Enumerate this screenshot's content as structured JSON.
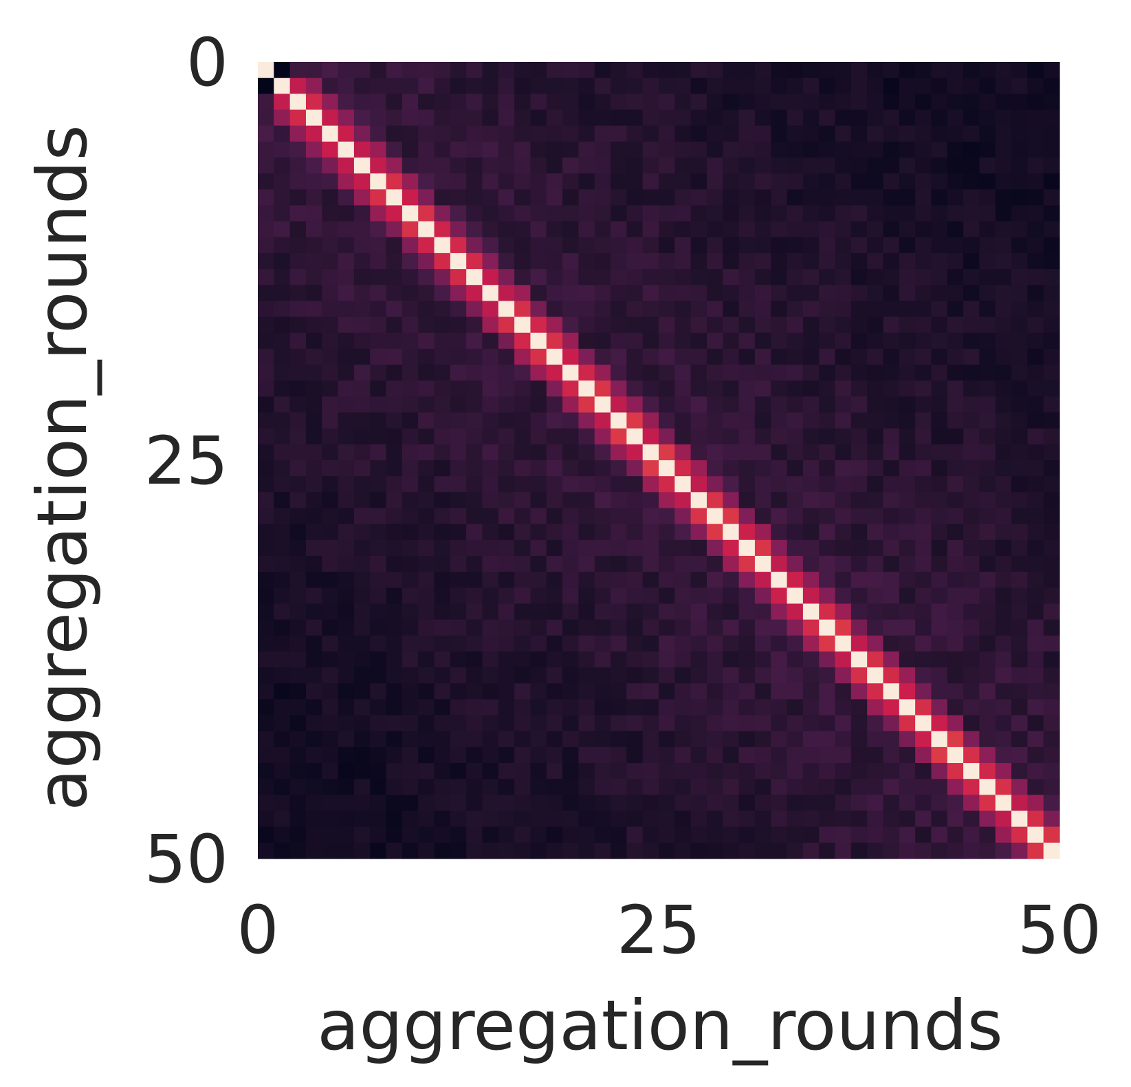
{
  "chart_data": {
    "type": "heatmap",
    "title": "",
    "xlabel": "aggregation_rounds",
    "ylabel": "aggregation_rounds",
    "n_rows": 50,
    "n_cols": 50,
    "x_ticks": [
      0,
      25,
      50
    ],
    "y_ticks": [
      0,
      25,
      50
    ],
    "x_tick_labels": [
      "0",
      "25",
      "50"
    ],
    "y_tick_labels": [
      "0",
      "25",
      "50"
    ],
    "colormap": "rocket",
    "colorbar": false,
    "grid": false,
    "value_range": [
      0,
      1
    ],
    "pattern": {
      "description": "symmetric similarity matrix: diagonal cells = 1.0, first off-diagonal ~0.6, second off-diagonal ~0.45, off-diagonal background ~0.05-0.2 with noise",
      "diagonal": 1.0,
      "off_diagonal_1": 0.62,
      "off_diagonal_2": 0.45,
      "background_min": 0.02,
      "background_max": 0.22,
      "special_cells": [
        {
          "row": 0,
          "col": 1,
          "value": 0.0
        },
        {
          "row": 1,
          "col": 0,
          "value": 0.0
        },
        {
          "row": 0,
          "col": 2,
          "value": 0.25
        },
        {
          "row": 2,
          "col": 0,
          "value": 0.25
        }
      ]
    }
  }
}
